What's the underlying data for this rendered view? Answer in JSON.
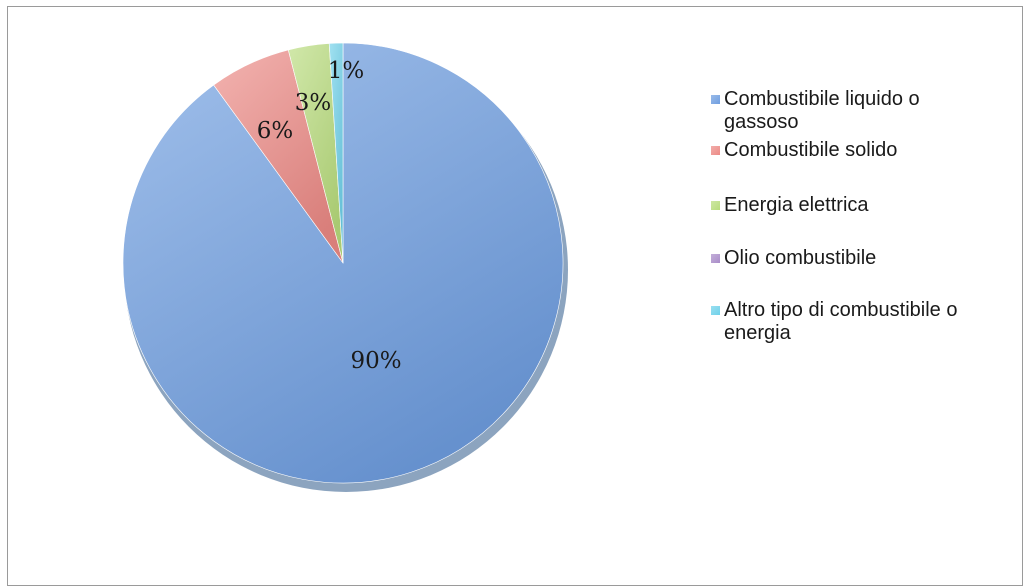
{
  "chart_data": {
    "type": "pie",
    "title": "",
    "categories": [
      "Combustibile liquido o gassoso",
      "Combustibile solido",
      "Energia elettrica",
      "Olio combustibile",
      "Altro tipo di combustibile o energia"
    ],
    "values": [
      90,
      6,
      3,
      0,
      1
    ],
    "data_labels": [
      "90%",
      "6%",
      "3%",
      "",
      "1%"
    ],
    "colors": [
      "#6f9ee0",
      "#ec8a86",
      "#b8dc7c",
      "#a98cc8",
      "#6fd1ea"
    ],
    "legend": "right"
  }
}
